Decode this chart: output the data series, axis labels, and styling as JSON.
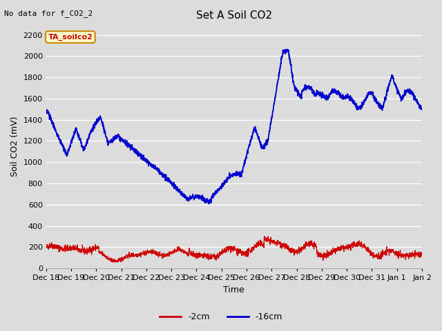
{
  "title": "Set A Soil CO2",
  "xlabel": "Time",
  "ylabel": "Soil CO2 (mV)",
  "ylim": [
    0,
    2300
  ],
  "yticks": [
    0,
    200,
    400,
    600,
    800,
    1000,
    1200,
    1400,
    1600,
    1800,
    2000,
    2200
  ],
  "bg_color": "#dcdcdc",
  "plot_bg_color": "#dcdcdc",
  "no_data_text": "No data for f_CO2_2",
  "annotation_text": "TA_soilco2",
  "annotation_bg": "#ffffcc",
  "annotation_border": "#cc8800",
  "legend_entries": [
    "-2cm",
    "-16cm"
  ],
  "line_color_red": "#cc0000",
  "line_color_blue": "#0000cc",
  "title_fontsize": 11,
  "axis_fontsize": 9,
  "tick_fontsize": 8,
  "legend_fontsize": 9
}
